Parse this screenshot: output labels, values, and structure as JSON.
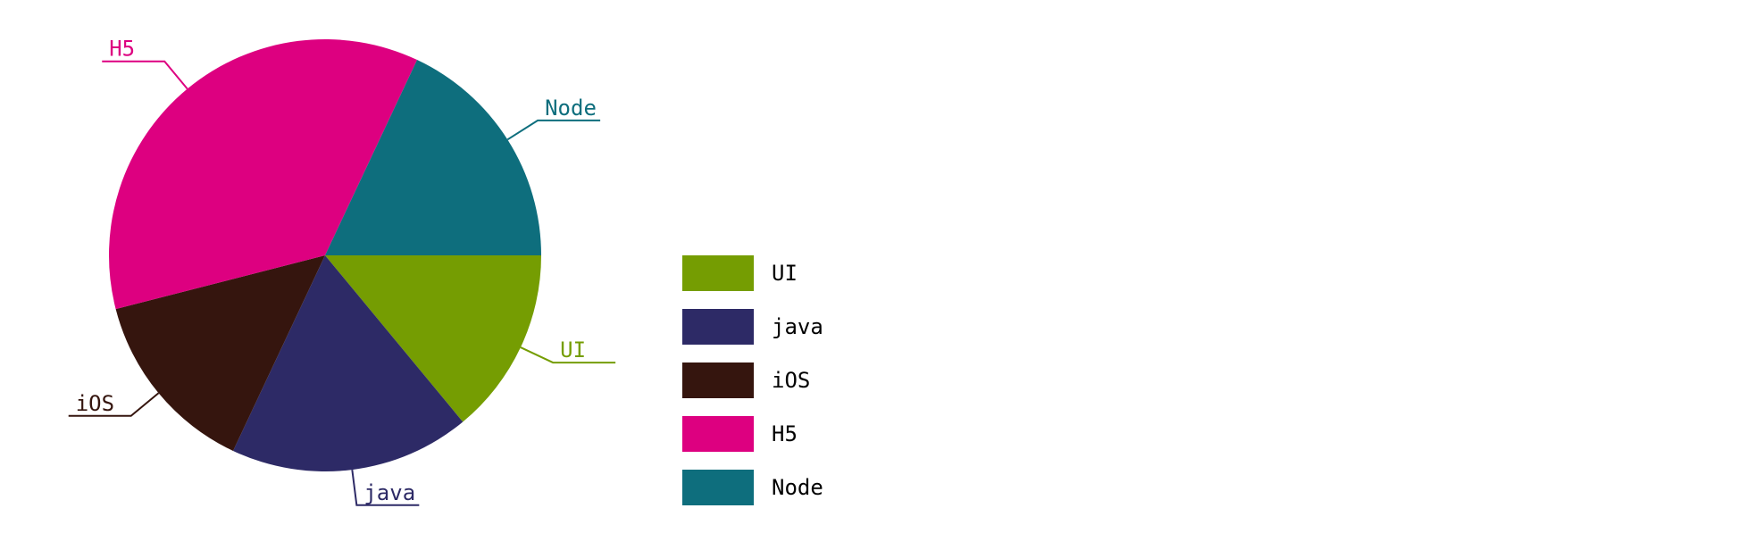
{
  "chart_data": {
    "type": "pie",
    "title": "",
    "legend_position": "right",
    "slices": [
      {
        "label": "UI",
        "value": 14,
        "color": "#759D02"
      },
      {
        "label": "java",
        "value": 18,
        "color": "#2D2A66"
      },
      {
        "label": "iOS",
        "value": 14,
        "color": "#35150E"
      },
      {
        "label": "H5",
        "value": 36,
        "color": "#DD0080"
      },
      {
        "label": "Node",
        "value": 18,
        "color": "#0E6E7D"
      }
    ]
  }
}
